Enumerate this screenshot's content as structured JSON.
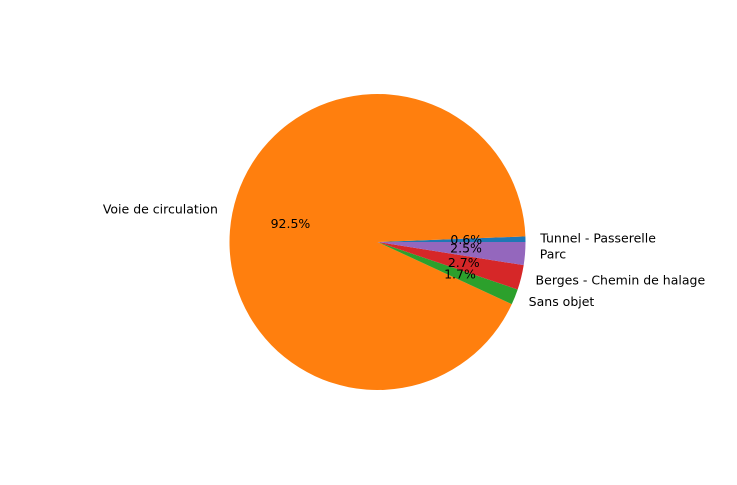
{
  "chart_data": {
    "type": "pie",
    "title": "",
    "start_angle_deg": 0,
    "direction": "counterclockwise",
    "slices": [
      {
        "label": "Tunnel - Passerelle",
        "value": 0.6,
        "pct_label": "0.6%",
        "color": "#1f77b4"
      },
      {
        "label": "Voie de circulation",
        "value": 92.5,
        "pct_label": "92.5%",
        "color": "#ff7f0e"
      },
      {
        "label": "Sans objet",
        "value": 1.7,
        "pct_label": "1.7%",
        "color": "#2ca02c"
      },
      {
        "label": "Berges - Chemin de halage",
        "value": 2.7,
        "pct_label": "2.7%",
        "color": "#d62728"
      },
      {
        "label": "Parc",
        "value": 2.5,
        "pct_label": "2.5%",
        "color": "#9467bd"
      }
    ]
  }
}
